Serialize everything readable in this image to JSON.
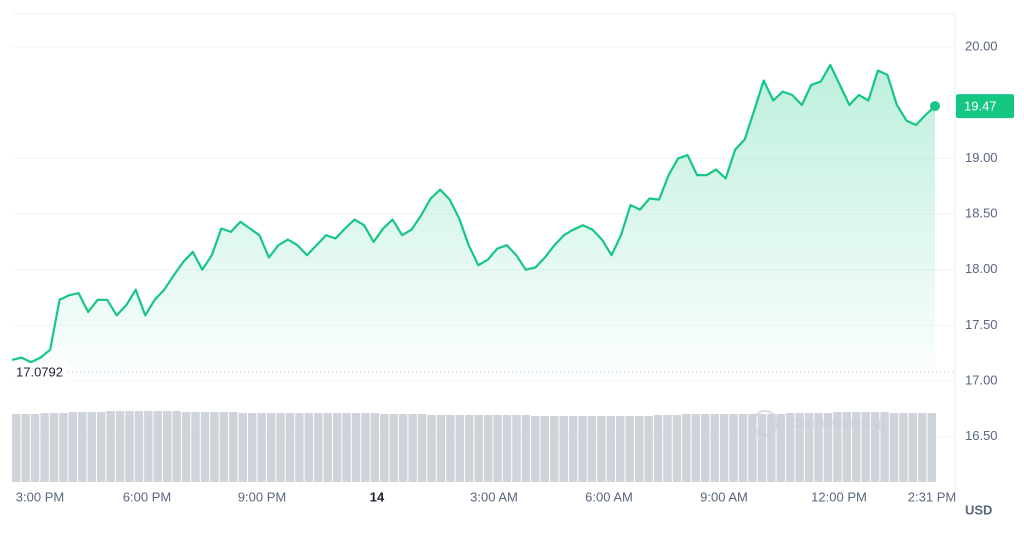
{
  "chart_data": {
    "type": "area",
    "series": [
      {
        "name": "price",
        "color": "#16c784",
        "values": [
          17.19,
          17.21,
          17.17,
          17.21,
          17.28,
          17.73,
          17.77,
          17.79,
          17.62,
          17.73,
          17.73,
          17.59,
          17.68,
          17.82,
          17.59,
          17.73,
          17.82,
          17.95,
          18.07,
          18.16,
          18.0,
          18.13,
          18.37,
          18.34,
          18.43,
          18.37,
          18.31,
          18.11,
          18.22,
          18.27,
          18.22,
          18.13,
          18.22,
          18.31,
          18.28,
          18.37,
          18.45,
          18.4,
          18.25,
          18.37,
          18.45,
          18.31,
          18.36,
          18.49,
          18.64,
          18.72,
          18.63,
          18.46,
          18.22,
          18.04,
          18.09,
          18.19,
          18.22,
          18.13,
          18.0,
          18.02,
          18.11,
          18.22,
          18.31,
          18.36,
          18.4,
          18.36,
          18.27,
          18.13,
          18.31,
          18.58,
          18.54,
          18.64,
          18.63,
          18.85,
          19.0,
          19.03,
          18.85,
          18.85,
          18.9,
          18.82,
          19.08,
          19.17,
          19.43,
          19.7,
          19.52,
          19.6,
          19.57,
          19.48,
          19.66,
          19.69,
          19.84,
          19.66,
          19.48,
          19.57,
          19.52,
          19.79,
          19.75,
          19.48,
          19.34,
          19.3,
          19.39,
          19.47
        ]
      }
    ],
    "volume": {
      "color": "#cfd3da",
      "values": [
        68,
        68,
        68,
        69,
        69,
        69,
        70,
        70,
        70,
        70,
        71,
        71,
        71,
        71,
        71,
        71,
        71,
        71,
        70,
        70,
        70,
        70,
        70,
        70,
        69,
        69,
        69,
        69,
        69,
        69,
        69,
        69,
        69,
        69,
        69,
        69,
        69,
        69,
        69,
        68,
        68,
        68,
        68,
        68,
        67,
        67,
        67,
        67,
        67,
        67,
        67,
        67,
        67,
        67,
        67,
        66,
        66,
        66,
        66,
        66,
        66,
        66,
        66,
        66,
        66,
        66,
        66,
        66,
        67,
        67,
        67,
        68,
        68,
        68,
        68,
        68,
        68,
        68,
        68,
        68,
        68,
        68,
        69,
        69,
        69,
        69,
        69,
        70,
        70,
        70,
        70,
        70,
        70,
        69,
        69,
        69,
        69,
        69
      ],
      "vlim": [
        0,
        100
      ]
    },
    "x_labels": [
      "3:00 PM",
      "6:00 PM",
      "9:00 PM",
      "14",
      "3:00 AM",
      "6:00 AM",
      "9:00 AM",
      "12:00 PM",
      "2:31 PM"
    ],
    "ylim": [
      16.3,
      20.3
    ],
    "yticks": [
      {
        "value": 16.5,
        "label": "16.50"
      },
      {
        "value": 17,
        "label": "17.00"
      },
      {
        "value": 17.5,
        "label": "17.50"
      },
      {
        "value": 18,
        "label": "18.00"
      },
      {
        "value": 18.5,
        "label": "18.50"
      },
      {
        "value": 19,
        "label": "19.00"
      },
      {
        "value": 20,
        "label": "20.00"
      }
    ],
    "reference": {
      "value": 17.0792,
      "label": "17.0792"
    },
    "last_price": {
      "value": 19.47,
      "label": "19.47"
    },
    "currency": "USD",
    "watermark": "CoinMarketCap",
    "grid": true
  }
}
